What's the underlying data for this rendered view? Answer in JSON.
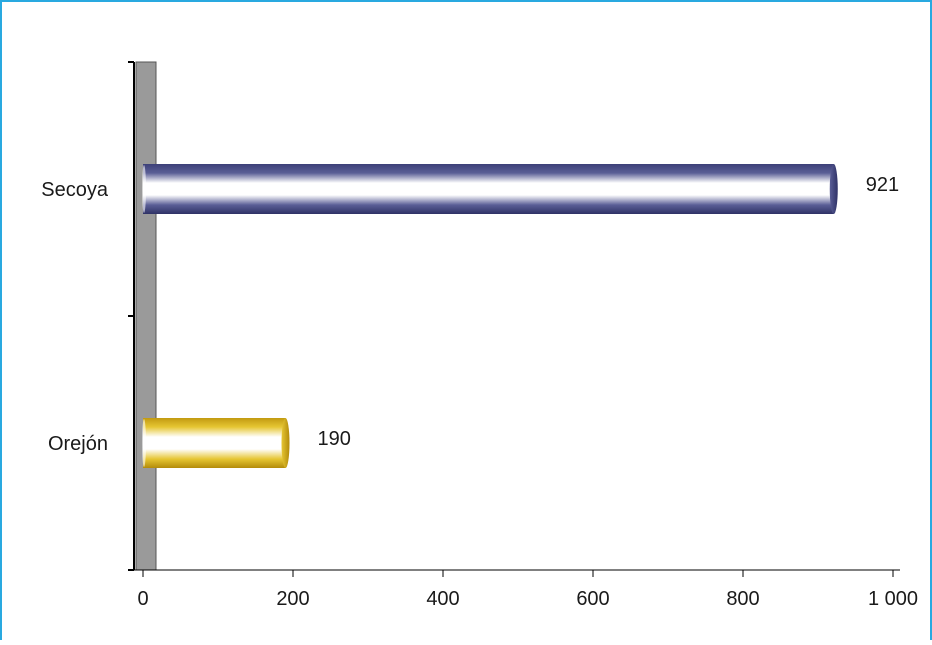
{
  "chart_data": {
    "type": "bar",
    "orientation": "horizontal",
    "categories": [
      "Secoya",
      "Orejón"
    ],
    "values": [
      921,
      190
    ],
    "data_labels": [
      "921",
      "190"
    ],
    "xlim": [
      0,
      1000
    ],
    "x_ticks": [
      0,
      200,
      400,
      600,
      800,
      1000
    ],
    "x_tick_labels": [
      "0",
      "200",
      "400",
      "600",
      "800",
      "1 000"
    ],
    "title": "",
    "xlabel": "",
    "ylabel": "",
    "grid": false,
    "legend": "none",
    "colors": {
      "Secoya": "#3d4078",
      "Orejón": "#d8b21a",
      "frame": "#29a9e0",
      "wall": "#9a9a9a"
    }
  }
}
